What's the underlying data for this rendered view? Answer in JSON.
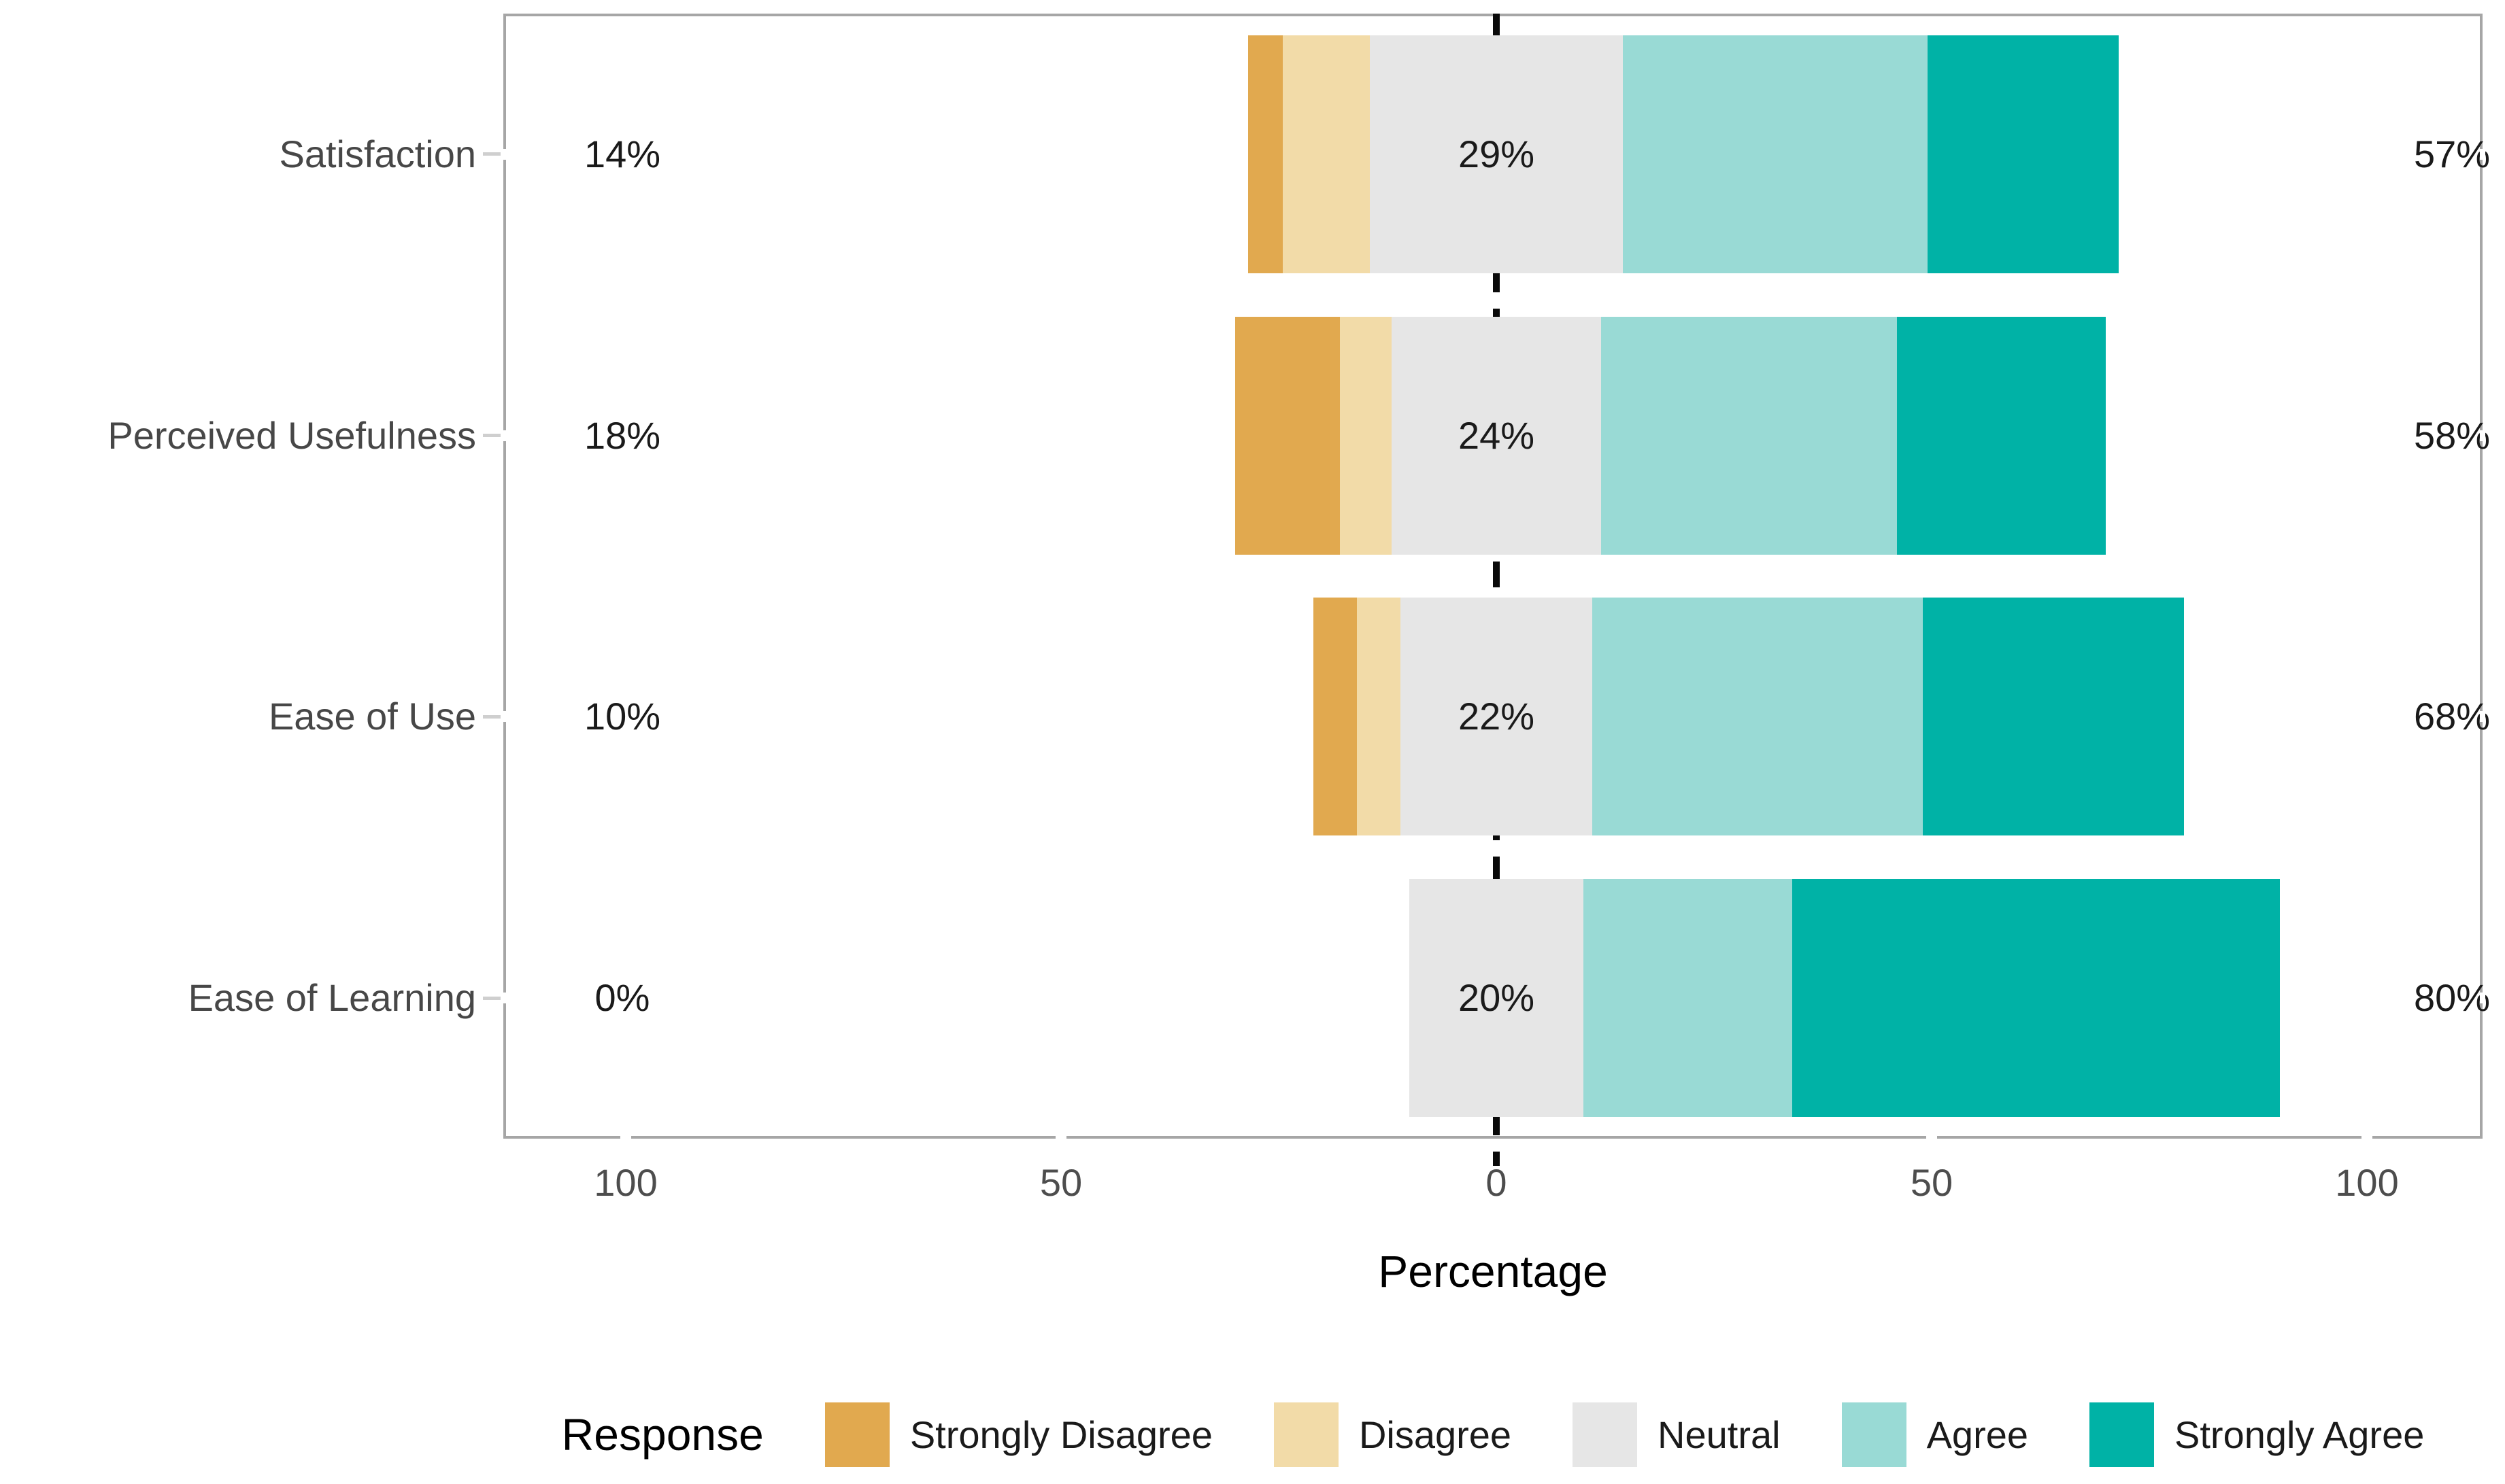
{
  "styles": {
    "background": "#FFFFFF",
    "panel_border": "#A6A6A6",
    "zero_line": "#000000",
    "axis_text": "#4D4D4D",
    "category_text": "#474747",
    "value_label_text": "#1A1A1A"
  },
  "chart_data": {
    "type": "bar",
    "subtype": "diverging-stacked-likert",
    "orientation": "horizontal",
    "categories": [
      "Satisfaction",
      "Perceived Usefulness",
      "Ease of Use",
      "Ease of Learning"
    ],
    "series": [
      {
        "name": "Strongly Disagree",
        "color": "#E1A94F",
        "values": [
          4,
          12,
          5,
          0
        ]
      },
      {
        "name": "Disagree",
        "color": "#F2DBA8",
        "values": [
          10,
          6,
          5,
          0
        ]
      },
      {
        "name": "Neutral",
        "color": "#E6E6E6",
        "values": [
          29,
          24,
          22,
          20
        ]
      },
      {
        "name": "Agree",
        "color": "#99DAD5",
        "values": [
          35,
          34,
          38,
          24
        ]
      },
      {
        "name": "Strongly Agree",
        "color": "#00B2A6",
        "values": [
          22,
          24,
          30,
          56
        ]
      }
    ],
    "row_labels": {
      "left": [
        "14%",
        "18%",
        "10%",
        "0%"
      ],
      "center": [
        "29%",
        "24%",
        "22%",
        "20%"
      ],
      "right": [
        "57%",
        "58%",
        "68%",
        "80%"
      ]
    },
    "xlabel": "Percentage",
    "x_ticks": [
      -100,
      -50,
      0,
      50,
      100
    ],
    "x_tick_labels": [
      "100",
      "50",
      "0",
      "50",
      "100"
    ],
    "xlim": [
      -114,
      113
    ],
    "grid": false,
    "zero_line": {
      "style": "dashed",
      "color": "#000000"
    },
    "legend": {
      "title": "Response",
      "position": "bottom",
      "entries": [
        "Strongly Disagree",
        "Disagree",
        "Neutral",
        "Agree",
        "Strongly Agree"
      ]
    }
  }
}
